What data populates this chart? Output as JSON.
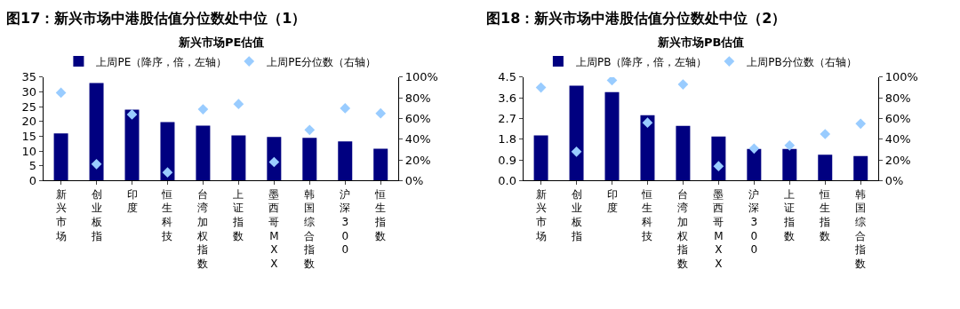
{
  "chart_data": [
    {
      "type": "bar",
      "title": "图17：新兴市场中港股估值分位数处中位（1）",
      "subtitle": "新兴市场PE估值",
      "categories": [
        "新兴市场",
        "创业板指",
        "印度",
        "恒生科技",
        "台湾加权指数",
        "上证指数",
        "墨西哥MXX",
        "韩国综合指数",
        "沪深300",
        "恒生指数"
      ],
      "series": [
        {
          "name": "上周PE（降序，倍，左轴）",
          "color": "#000080",
          "values": [
            16,
            33,
            24,
            19.8,
            18.6,
            15.3,
            14.8,
            14.5,
            13.3,
            10.8
          ]
        },
        {
          "name": "上周PE分位数（右轴）",
          "type": "scatter",
          "axis": "y2",
          "marker": "diamond",
          "color": "#99ccff",
          "values": [
            85,
            16,
            64,
            8,
            69,
            74,
            18,
            49,
            70,
            65
          ]
        }
      ],
      "ylim": [
        0,
        35
      ],
      "yticks": [
        0,
        5,
        10,
        15,
        20,
        25,
        30,
        35
      ],
      "y2lim": [
        0,
        100
      ],
      "y2ticks": [
        {
          "value": 0,
          "label": "0%"
        },
        {
          "value": 20,
          "label": "20%"
        },
        {
          "value": 40,
          "label": "40%"
        },
        {
          "value": 60,
          "label": "60%"
        },
        {
          "value": 80,
          "label": "80%"
        },
        {
          "value": 100,
          "label": "100%"
        }
      ],
      "legend": "top"
    },
    {
      "type": "bar",
      "title": "图18：新兴市场中港股估值分位数处中位（2）",
      "subtitle": "新兴市场PB估值",
      "categories": [
        "新兴市场",
        "创业板指",
        "印度",
        "恒生科技",
        "台湾加权指数",
        "墨西哥MXX",
        "沪深300",
        "上证指数",
        "恒生指数",
        "韩国综合指数"
      ],
      "series": [
        {
          "name": "上周PB（降序，倍，左轴）",
          "color": "#000080",
          "values": [
            1.97,
            4.13,
            3.85,
            2.85,
            2.38,
            1.92,
            1.38,
            1.38,
            1.13,
            1.07
          ]
        },
        {
          "name": "上周PB分位数（右轴）",
          "type": "scatter",
          "axis": "y2",
          "marker": "diamond",
          "color": "#99ccff",
          "values": [
            90,
            28,
            97,
            56,
            93,
            14,
            31,
            34,
            45,
            55
          ]
        }
      ],
      "ylim": [
        0,
        4.5
      ],
      "yticks": [
        {
          "value": 0,
          "label": "0.0"
        },
        0.9,
        1.8,
        2.7,
        3.6,
        4.5
      ],
      "y2lim": [
        0,
        100
      ],
      "y2ticks": [
        {
          "value": 0,
          "label": "0%"
        },
        {
          "value": 20,
          "label": "20%"
        },
        {
          "value": 40,
          "label": "40%"
        },
        {
          "value": 60,
          "label": "60%"
        },
        {
          "value": 80,
          "label": "80%"
        },
        {
          "value": 100,
          "label": "100%"
        }
      ],
      "legend": "top"
    }
  ]
}
